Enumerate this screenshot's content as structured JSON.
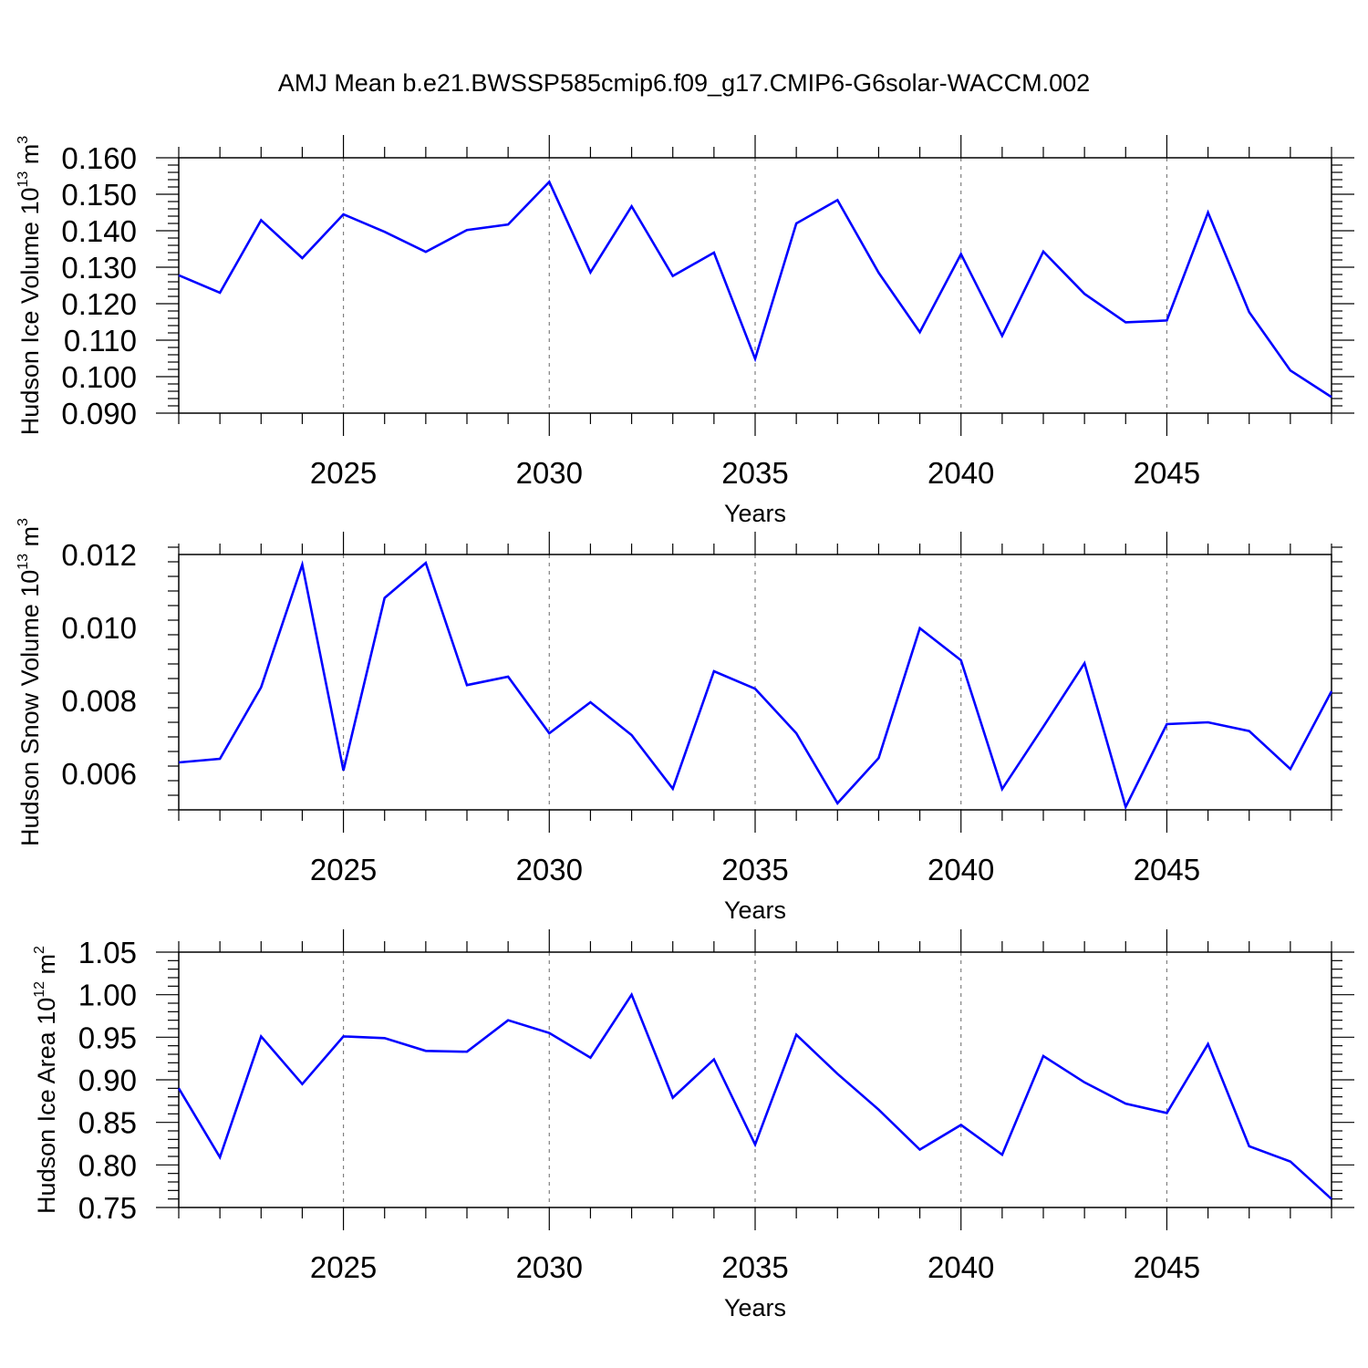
{
  "title": "AMJ Mean b.e21.BWSSP585cmip6.f09_g17.CMIP6-G6solar-WACCM.002",
  "colors": {
    "line": "#0000ff",
    "axis": "#000000",
    "grid": "#808080"
  },
  "chart_data": [
    {
      "type": "line",
      "ylabel": {
        "main": "Hudson Ice Volume 10",
        "exp": "13",
        "unit": " m",
        "unit_exp": "3"
      },
      "xlabel": "Years",
      "xlim": [
        2021,
        2049
      ],
      "ylim": [
        0.09,
        0.16
      ],
      "yticks": [
        "0.160",
        "0.150",
        "0.140",
        "0.130",
        "0.120",
        "0.110",
        "0.100",
        "0.090"
      ],
      "ytick_values": [
        0.16,
        0.15,
        0.14,
        0.13,
        0.12,
        0.11,
        0.1,
        0.09
      ],
      "xticks": [
        "2025",
        "2030",
        "2035",
        "2040",
        "2045"
      ],
      "xtick_values": [
        2025,
        2030,
        2035,
        2040,
        2045
      ],
      "x": [
        2021,
        2022,
        2023,
        2024,
        2025,
        2026,
        2027,
        2028,
        2029,
        2030,
        2031,
        2032,
        2033,
        2034,
        2035,
        2036,
        2037,
        2038,
        2039,
        2040,
        2041,
        2042,
        2043,
        2044,
        2045,
        2046,
        2047,
        2048,
        2049
      ],
      "values": [
        0.1278,
        0.123,
        0.1429,
        0.1325,
        0.1445,
        0.1397,
        0.1342,
        0.1402,
        0.1417,
        0.1534,
        0.1286,
        0.1467,
        0.1276,
        0.134,
        0.1049,
        0.142,
        0.1484,
        0.1285,
        0.1122,
        0.1336,
        0.1112,
        0.1343,
        0.1227,
        0.1149,
        0.1154,
        0.145,
        0.1177,
        0.1017,
        0.0944
      ]
    },
    {
      "type": "line",
      "ylabel": {
        "main": "Hudson Snow Volume 10",
        "exp": "13",
        "unit": " m",
        "unit_exp": "3"
      },
      "xlabel": "Years",
      "xlim": [
        2021,
        2049
      ],
      "ylim": [
        0.005,
        0.012
      ],
      "yticks": [
        "0.012",
        "0.010",
        "0.008",
        "0.006"
      ],
      "ytick_values": [
        0.012,
        0.01,
        0.008,
        0.006
      ],
      "xticks": [
        "2025",
        "2030",
        "2035",
        "2040",
        "2045"
      ],
      "xtick_values": [
        2025,
        2030,
        2035,
        2040,
        2045
      ],
      "x": [
        2021,
        2022,
        2023,
        2024,
        2025,
        2026,
        2027,
        2028,
        2029,
        2030,
        2031,
        2032,
        2033,
        2034,
        2035,
        2036,
        2037,
        2038,
        2039,
        2040,
        2041,
        2042,
        2043,
        2044,
        2045,
        2046,
        2047,
        2048,
        2049
      ],
      "values": [
        0.0063,
        0.0064,
        0.00836,
        0.01172,
        0.00608,
        0.01081,
        0.01177,
        0.00842,
        0.00865,
        0.0071,
        0.00795,
        0.00705,
        0.00558,
        0.0088,
        0.00832,
        0.0071,
        0.00518,
        0.00642,
        0.00998,
        0.0091,
        0.00557,
        0.00728,
        0.00902,
        0.00508,
        0.00735,
        0.0074,
        0.00716,
        0.00612,
        0.00825
      ]
    },
    {
      "type": "line",
      "ylabel": {
        "main": "Hudson Ice Area 10",
        "exp": "12",
        "unit": " m",
        "unit_exp": "2"
      },
      "xlabel": "Years",
      "xlim": [
        2021,
        2049
      ],
      "ylim": [
        0.75,
        1.05
      ],
      "yticks": [
        "1.05",
        "1.00",
        "0.95",
        "0.90",
        "0.85",
        "0.80",
        "0.75"
      ],
      "ytick_values": [
        1.05,
        1.0,
        0.95,
        0.9,
        0.85,
        0.8,
        0.75
      ],
      "xticks": [
        "2025",
        "2030",
        "2035",
        "2040",
        "2045"
      ],
      "xtick_values": [
        2025,
        2030,
        2035,
        2040,
        2045
      ],
      "x": [
        2021,
        2022,
        2023,
        2024,
        2025,
        2026,
        2027,
        2028,
        2029,
        2030,
        2031,
        2032,
        2033,
        2034,
        2035,
        2036,
        2037,
        2038,
        2039,
        2040,
        2041,
        2042,
        2043,
        2044,
        2045,
        2046,
        2047,
        2048,
        2049
      ],
      "values": [
        0.89,
        0.809,
        0.951,
        0.895,
        0.951,
        0.949,
        0.934,
        0.933,
        0.97,
        0.955,
        0.926,
        1.0,
        0.879,
        0.924,
        0.824,
        0.953,
        0.907,
        0.865,
        0.818,
        0.847,
        0.812,
        0.928,
        0.897,
        0.872,
        0.861,
        0.942,
        0.822,
        0.804,
        0.76
      ]
    }
  ]
}
